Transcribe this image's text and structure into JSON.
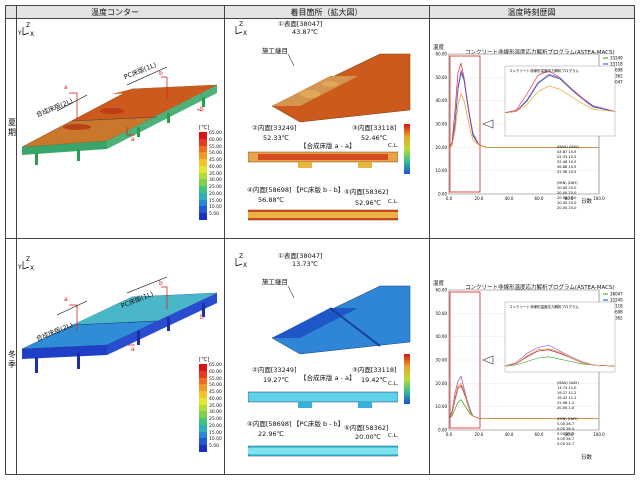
{
  "headers": {
    "contour": "温度コンター",
    "focus": "着目箇所（拡大図）",
    "history": "温度時刻歴図"
  },
  "summer": {
    "season": "夏\n期",
    "slab_pc": "PC床版(1L)",
    "slab_comp": "合成床版(2L)",
    "legend_unit": "[℃]",
    "legend_ticks": [
      "65.00",
      "60.00",
      "55.00",
      "50.00",
      "45.00",
      "40.00",
      "35.00",
      "30.00",
      "25.00",
      "20.00",
      "15.00",
      "10.00",
      "5.00"
    ],
    "surface_label": "①表面[38047]",
    "surface_value": "43.87℃",
    "joint_label": "施工継目",
    "sec_aa": "【合成床版 a - a】",
    "sec_bb": "【PC床版 b - b】",
    "p2_label": "②内面[33249]",
    "p2_value": "52.33℃",
    "p3_label": "③内面[33118]",
    "p3_value": "52.46℃",
    "p4_label": "④内面[58698]",
    "p4_value": "56.88℃",
    "p5_label": "⑤内面[58362]",
    "p5_value": "52.96℃",
    "cl": "C.L.",
    "chart_title": "コンクリート非線形温度応力解析プログラム(ASTEA-MACS)",
    "chart_sub": "コンクリート非線形温度応力解析プログラム",
    "ylabel": "温度",
    "xlabel": "日数",
    "legend": [
      "33249",
      "33118",
      "58698",
      "58362",
      "38047"
    ],
    "table1": [
      "(MAX)  (DAY)",
      "43.87  10.5",
      "52.33  10.5",
      "52.46  10.5",
      "56.88  10.5",
      "52.96  10.5"
    ],
    "table2": [
      "(MIN)  (DAY)",
      "20.00  25.0",
      "20.00  25.0",
      "20.00  25.0",
      "20.00  25.0",
      "20.00  25.0"
    ]
  },
  "winter": {
    "season": "冬\n季",
    "slab_pc": "PC床版(1L)",
    "slab_comp": "合成床版(2L)",
    "legend_unit": "[℃]",
    "legend_ticks": [
      "65.00",
      "60.00",
      "55.00",
      "50.00",
      "45.00",
      "40.00",
      "35.00",
      "30.00",
      "25.00",
      "20.00",
      "15.00",
      "10.00",
      "5.00"
    ],
    "surface_label": "①表面[38047]",
    "surface_value": "13.73℃",
    "joint_label": "施工継目",
    "sec_aa": "【合成床版 a - a】",
    "sec_bb": "【PC床版 b - b】",
    "p2_label": "②内面[33249]",
    "p2_value": "19.27℃",
    "p3_label": "③内面[33118]",
    "p3_value": "19.42℃",
    "p4_label": "④内面[58698]",
    "p4_value": "22.96℃",
    "p5_label": "⑤内面[58362]",
    "p5_value": "20.00℃",
    "cl": "C.L.",
    "chart_title": "コンクリート非線形温度応力解析プログラム(ASTEA-MACS)",
    "chart_sub": "コンクリート非線形温度応力解析プログラム",
    "ylabel": "温度",
    "xlabel": "日数",
    "legend": [
      "38047",
      "33249",
      "33118",
      "58698",
      "58362"
    ],
    "table1": [
      "(MAX)  (DAY)",
      "13.73  11.0",
      "19.27  11.2",
      "19.42  11.2",
      "22.96  1.2",
      "20.00  1.0"
    ],
    "table2": [
      "(MIN)  (DAY)",
      "5.00  26.7",
      "5.00  26.3",
      "5.00  26.3",
      "5.00  26.7",
      "5.00  24.7"
    ]
  },
  "chart_data": [
    {
      "type": "line",
      "title": "コンクリート非線形温度応力解析プログラム(ASTEA-MACS)",
      "xlabel": "日数",
      "ylabel": "温度",
      "xlim": [
        0,
        100
      ],
      "ylim": [
        0,
        60
      ],
      "x": [
        0,
        2,
        4,
        6,
        8,
        10,
        12,
        14,
        16,
        20,
        25,
        30,
        40,
        50,
        60,
        70,
        80,
        90,
        100
      ],
      "series": [
        {
          "name": "33249",
          "values": [
            20,
            21,
            30,
            45,
            52,
            49,
            40,
            32,
            25,
            21,
            20,
            20,
            20,
            20,
            20,
            20,
            20,
            20,
            20
          ]
        },
        {
          "name": "33118",
          "values": [
            20,
            21,
            30,
            45,
            52,
            49,
            40,
            32,
            25,
            21,
            20,
            20,
            20,
            20,
            20,
            20,
            20,
            20,
            20
          ]
        },
        {
          "name": "58698",
          "values": [
            20,
            22,
            36,
            52,
            56,
            50,
            41,
            33,
            26,
            21,
            20,
            20,
            20,
            20,
            20,
            20,
            20,
            20,
            20
          ]
        },
        {
          "name": "58362",
          "values": [
            20,
            21,
            31,
            46,
            53,
            50,
            41,
            32,
            26,
            21,
            20,
            20,
            20,
            20,
            20,
            20,
            20,
            20,
            20
          ]
        },
        {
          "name": "38047",
          "values": [
            20,
            21,
            27,
            38,
            43,
            40,
            34,
            28,
            23,
            21,
            20,
            20,
            20,
            20,
            20,
            20,
            20,
            20,
            20
          ]
        }
      ]
    },
    {
      "type": "line",
      "title": "コンクリート非線形温度応力解析プログラム(ASTEA-MACS)",
      "xlabel": "日数",
      "ylabel": "温度",
      "xlim": [
        0,
        100
      ],
      "ylim": [
        0,
        60
      ],
      "x": [
        0,
        2,
        4,
        6,
        8,
        10,
        12,
        14,
        16,
        20,
        25,
        30,
        40,
        50,
        60,
        70,
        80,
        90,
        100
      ],
      "series": [
        {
          "name": "38047",
          "values": [
            5,
            6,
            9,
            12,
            13,
            11,
            9,
            7,
            6,
            5,
            5,
            5,
            5,
            5,
            5,
            5,
            5,
            5,
            5
          ]
        },
        {
          "name": "33249",
          "values": [
            5,
            7,
            13,
            18,
            19,
            16,
            12,
            8,
            6,
            5,
            5,
            5,
            5,
            5,
            5,
            5,
            5,
            5,
            5
          ]
        },
        {
          "name": "33118",
          "values": [
            5,
            7,
            13,
            18,
            19,
            16,
            12,
            8,
            6,
            5,
            5,
            5,
            5,
            5,
            5,
            5,
            5,
            5,
            5
          ]
        },
        {
          "name": "58698",
          "values": [
            5,
            8,
            16,
            21,
            23,
            18,
            13,
            9,
            6,
            5,
            5,
            5,
            5,
            5,
            5,
            5,
            5,
            5,
            5
          ]
        },
        {
          "name": "58362",
          "values": [
            5,
            7,
            14,
            19,
            20,
            17,
            12,
            8,
            6,
            5,
            5,
            5,
            5,
            5,
            5,
            5,
            5,
            5,
            5
          ]
        }
      ]
    }
  ]
}
